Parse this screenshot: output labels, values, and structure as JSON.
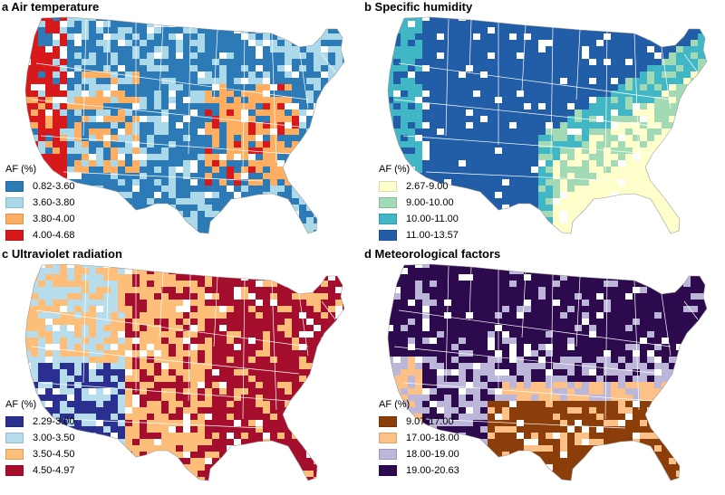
{
  "panels": [
    {
      "id": "a",
      "title": "a Air temperature",
      "legend_title": "AF (%)",
      "legend": [
        {
          "label": "0.82-3.60",
          "color": "#2c7bb6"
        },
        {
          "label": "3.60-3.80",
          "color": "#abd9e9"
        },
        {
          "label": "3.80-4.00",
          "color": "#fdae61"
        },
        {
          "label": "4.00-4.68",
          "color": "#d7191c"
        }
      ],
      "regions": [
        {
          "class": 0,
          "color": "#2c7bb6"
        },
        {
          "class": 1,
          "color": "#abd9e9"
        },
        {
          "class": 2,
          "color": "#fdae61"
        },
        {
          "class": 3,
          "color": "#d7191c"
        }
      ]
    },
    {
      "id": "b",
      "title": "b Specific humidity",
      "legend_title": "AF (%)",
      "legend": [
        {
          "label": "2.67-9.00",
          "color": "#ffffcc"
        },
        {
          "label": "9.00-10.00",
          "color": "#a1dab4"
        },
        {
          "label": "10.00-11.00",
          "color": "#41b6c4"
        },
        {
          "label": "11.00-13.57",
          "color": "#225ea8"
        }
      ]
    },
    {
      "id": "c",
      "title": "c Ultraviolet radiation",
      "legend_title": "AF (%)",
      "legend": [
        {
          "label": "2.29-3.00",
          "color": "#2b2f8f"
        },
        {
          "label": "3.00-3.50",
          "color": "#b7dcec"
        },
        {
          "label": "3.50-4.50",
          "color": "#fdbe7a"
        },
        {
          "label": "4.50-4.97",
          "color": "#a50f2d"
        }
      ]
    },
    {
      "id": "d",
      "title": "d Meteorological factors",
      "legend_title": "AF (%)",
      "legend": [
        {
          "label": "9.07-17.00",
          "color": "#8c3e0a"
        },
        {
          "label": "17.00-18.00",
          "color": "#fdc086"
        },
        {
          "label": "18.00-19.00",
          "color": "#bcb6d9"
        },
        {
          "label": "19.00-20.63",
          "color": "#2d0a4e"
        }
      ]
    }
  ]
}
